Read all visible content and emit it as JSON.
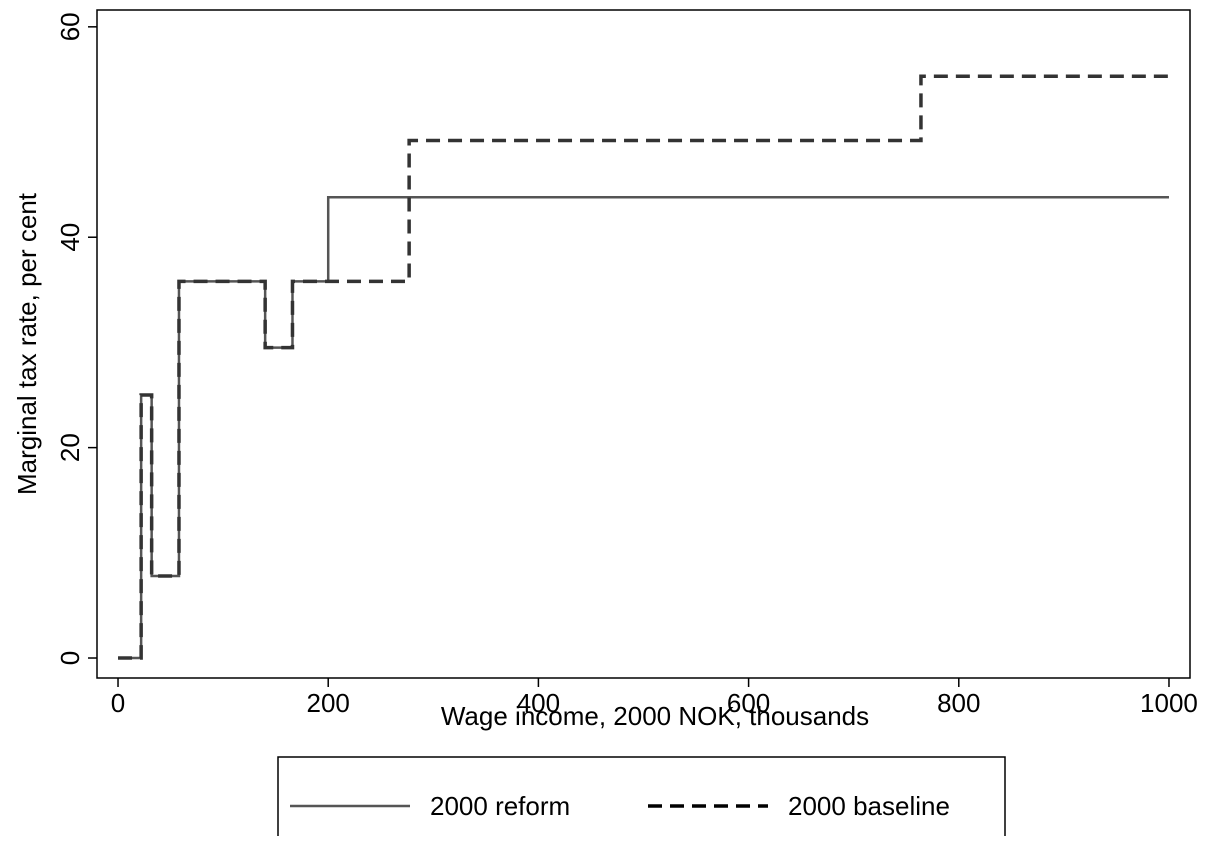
{
  "chart_data": {
    "type": "step",
    "x_label": "Wage income, 2000 NOK, thousands",
    "y_label": "Marginal tax rate, per cent",
    "x": [
      0,
      22,
      32,
      58,
      140,
      166,
      200,
      277,
      764,
      1000
    ],
    "series": [
      {
        "name": "2000 reform",
        "color": "#555555",
        "style": "solid",
        "values": [
          0,
          25,
          7.8,
          35.8,
          29.5,
          35.8,
          43.8,
          43.8,
          43.8,
          43.8
        ]
      },
      {
        "name": "2000 baseline",
        "color": "#333333",
        "style": "dashed",
        "values": [
          0,
          25,
          7.8,
          35.8,
          29.5,
          35.8,
          35.8,
          49.2,
          55.3,
          55.3
        ]
      }
    ],
    "xlim": [
      -20,
      1020
    ],
    "xticks": [
      0,
      200,
      400,
      600,
      800,
      1000
    ],
    "ylim": [
      -1.9,
      61.6
    ],
    "yticks": [
      0,
      20,
      40,
      60
    ],
    "legend": "bottom"
  }
}
